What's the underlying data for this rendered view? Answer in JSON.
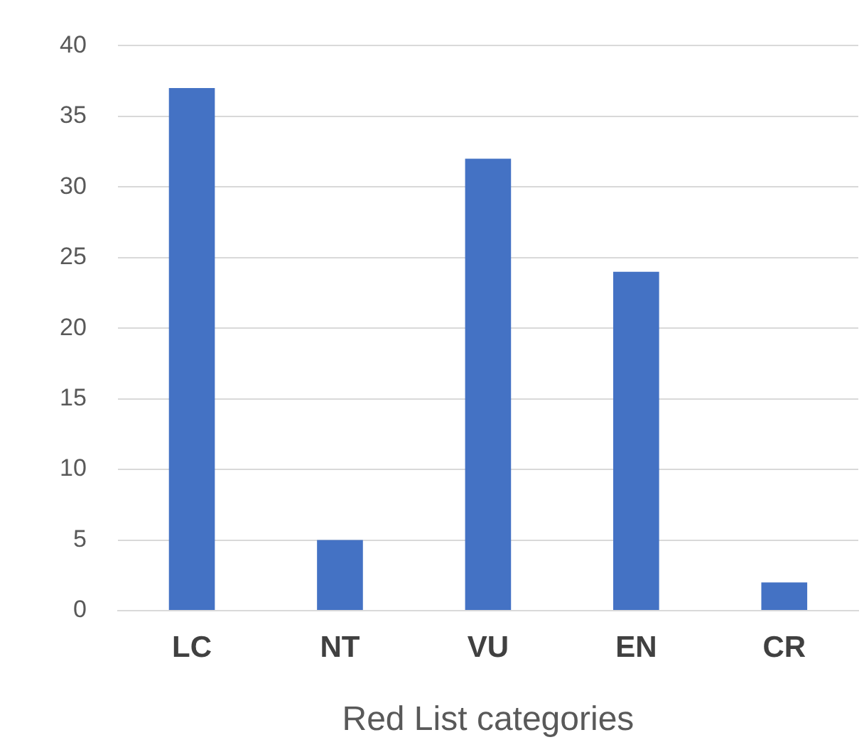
{
  "chart_data": {
    "type": "bar",
    "xlabel": "Red List categories",
    "categories": [
      "LC",
      "NT",
      "VU",
      "EN",
      "CR"
    ],
    "values": [
      37,
      5,
      32,
      24,
      2
    ],
    "color": "#4472c4",
    "ylim": [
      0,
      40
    ],
    "yticks": [
      0,
      5,
      10,
      15,
      20,
      25,
      30,
      35,
      40
    ],
    "grid": "y"
  }
}
